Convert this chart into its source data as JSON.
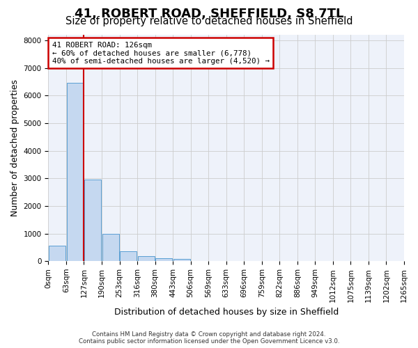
{
  "title": "41, ROBERT ROAD, SHEFFIELD, S8 7TL",
  "subtitle": "Size of property relative to detached houses in Sheffield",
  "xlabel": "Distribution of detached houses by size in Sheffield",
  "ylabel": "Number of detached properties",
  "bin_edges": [
    "0sqm",
    "63sqm",
    "127sqm",
    "190sqm",
    "253sqm",
    "316sqm",
    "380sqm",
    "443sqm",
    "506sqm",
    "569sqm",
    "633sqm",
    "696sqm",
    "759sqm",
    "822sqm",
    "886sqm",
    "949sqm",
    "1012sqm",
    "1075sqm",
    "1139sqm",
    "1202sqm",
    "1265sqm"
  ],
  "bar_heights": [
    550,
    6450,
    2950,
    1000,
    370,
    175,
    100,
    80,
    0,
    0,
    0,
    0,
    0,
    0,
    0,
    0,
    0,
    0,
    0,
    0
  ],
  "bar_color": "#c5d8f0",
  "bar_edge_color": "#5a9fd4",
  "red_line_index": 2,
  "red_line_color": "#cc0000",
  "annotation_title": "41 ROBERT ROAD: 126sqm",
  "annotation_line1": "← 60% of detached houses are smaller (6,778)",
  "annotation_line2": "40% of semi-detached houses are larger (4,520) →",
  "annotation_box_color": "#cc0000",
  "ylim": [
    0,
    8200
  ],
  "yticks": [
    0,
    1000,
    2000,
    3000,
    4000,
    5000,
    6000,
    7000,
    8000
  ],
  "grid_color": "#cccccc",
  "background_color": "#eef2fa",
  "footer_line1": "Contains HM Land Registry data © Crown copyright and database right 2024.",
  "footer_line2": "Contains public sector information licensed under the Open Government Licence v3.0.",
  "title_fontsize": 13,
  "subtitle_fontsize": 10.5,
  "axis_label_fontsize": 9,
  "tick_fontsize": 7.5
}
